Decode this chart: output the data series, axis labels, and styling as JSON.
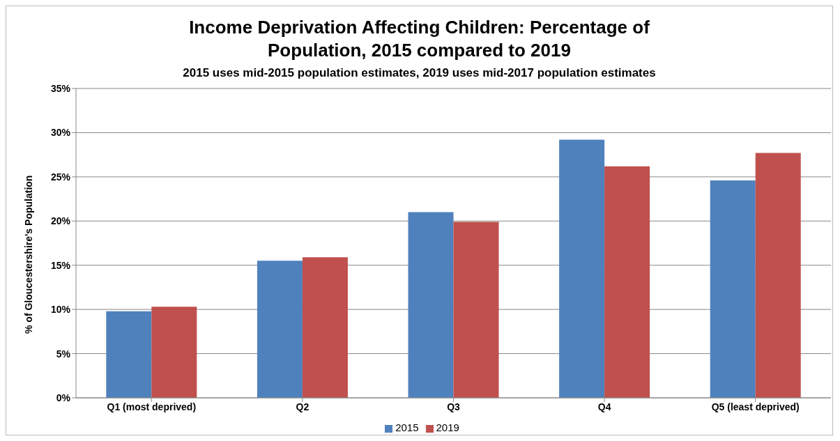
{
  "chart_data": {
    "type": "bar",
    "title": "Income Deprivation Affecting Children: Percentage of Population, 2015 compared to 2019",
    "subtitle": "2015 uses mid-2015 population estimates, 2019 uses mid-2017 population estimates",
    "ylabel": "% of Gloucestershire's Population",
    "categories": [
      "Q1 (most deprived)",
      "Q2",
      "Q3",
      "Q4",
      "Q5 (least deprived)"
    ],
    "series": [
      {
        "name": "2015",
        "color": "#4f81bd",
        "values": [
          9.8,
          15.5,
          21.0,
          29.2,
          24.6
        ]
      },
      {
        "name": "2019",
        "color": "#c0504d",
        "values": [
          10.3,
          15.9,
          19.9,
          26.2,
          27.7
        ]
      }
    ],
    "ylim": [
      0,
      35
    ],
    "yticks": [
      {
        "value": 0,
        "label": "0%"
      },
      {
        "value": 5,
        "label": "5%"
      },
      {
        "value": 10,
        "label": "10%"
      },
      {
        "value": 15,
        "label": "15%"
      },
      {
        "value": 20,
        "label": "20%"
      },
      {
        "value": 25,
        "label": "25%"
      },
      {
        "value": 30,
        "label": "30%"
      },
      {
        "value": 35,
        "label": "35%"
      }
    ],
    "grid": "y",
    "legend": "bottom"
  }
}
